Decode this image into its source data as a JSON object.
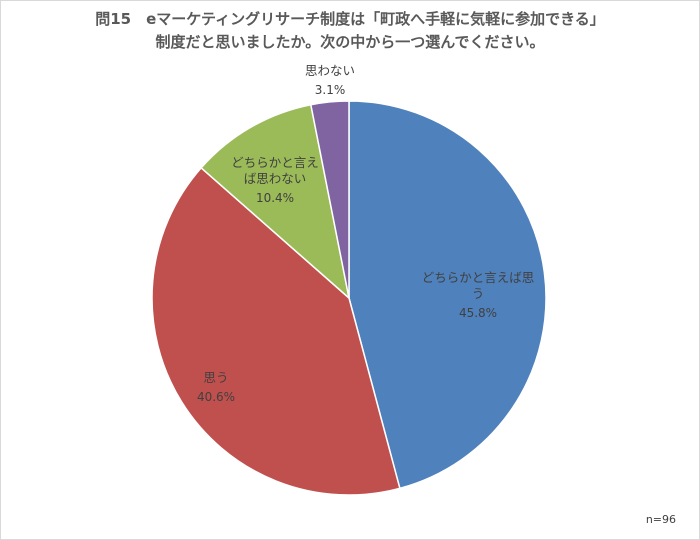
{
  "chart_data": {
    "type": "pie",
    "title_line1": "問15　eマーケティングリサーチ制度は「町政へ手軽に気軽に参加できる」",
    "title_line2": "制度だと思いましたか。次の中から一つ選んでください。",
    "slices": [
      {
        "label_lines": [
          "どちらかと言えば思",
          "う"
        ],
        "value": 45.8,
        "value_label": "45.8%",
        "color": "#4f81bd"
      },
      {
        "label_lines": [
          "思う"
        ],
        "value": 40.6,
        "value_label": "40.6%",
        "color": "#c0504d"
      },
      {
        "label_lines": [
          "どちらかと言え",
          "ば思わない"
        ],
        "value": 10.4,
        "value_label": "10.4%",
        "color": "#9bbb59"
      },
      {
        "label_lines": [
          "思わない"
        ],
        "value": 3.1,
        "value_label": "3.1%",
        "color": "#8064a2"
      }
    ],
    "start_angle_deg": 0,
    "direction": "clockwise",
    "note": "n=96"
  }
}
